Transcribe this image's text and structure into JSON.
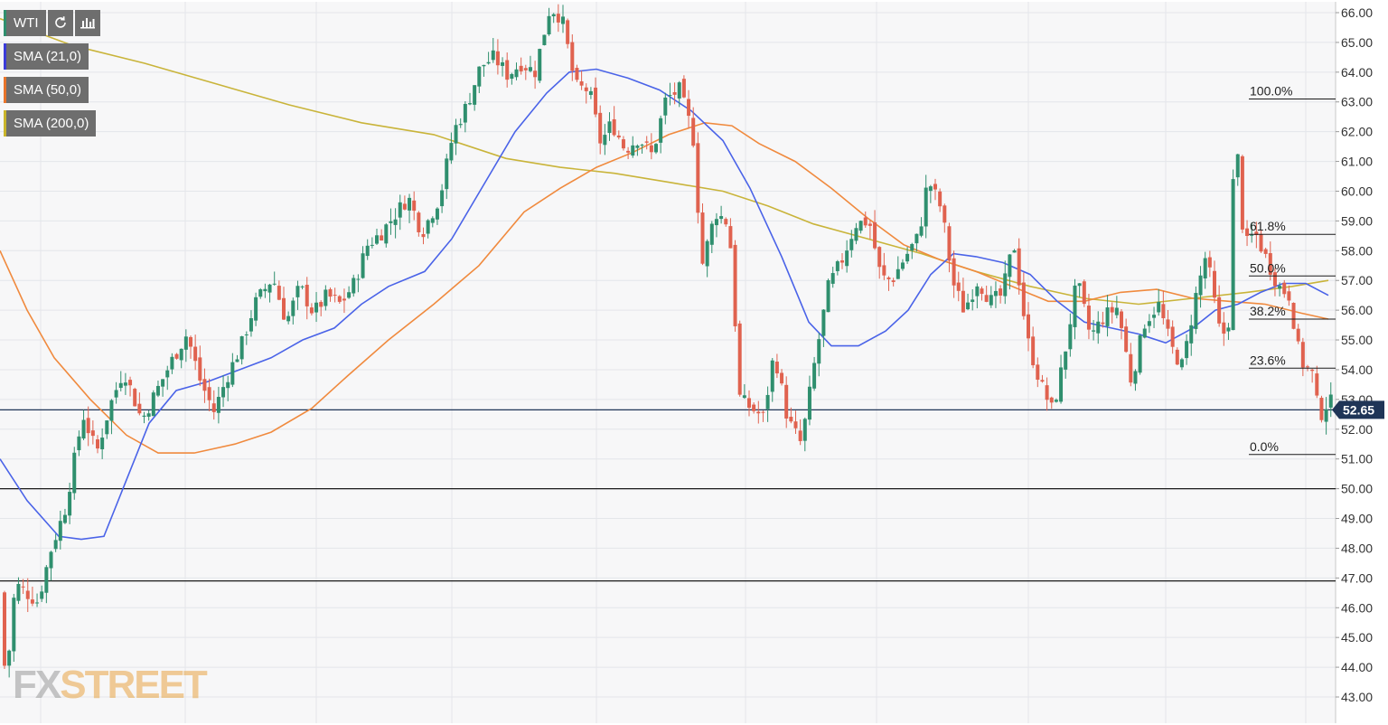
{
  "legend": {
    "symbol": "WTI",
    "indicators": [
      {
        "label": "SMA (21,0)",
        "color": "#3b3bd8"
      },
      {
        "label": "SMA (50,0)",
        "color": "#e8742a"
      },
      {
        "label": "SMA (200,0)",
        "color": "#c9b42a"
      }
    ],
    "refresh_icon": "refresh-icon",
    "chart_type_icon": "bar-chart-icon"
  },
  "watermark": {
    "part1": "FX",
    "part2": "STREET"
  },
  "colors": {
    "up": "#2f8f6e",
    "down": "#e0624f",
    "sma21": "#4a63e8",
    "sma50": "#f08a3e",
    "sma200": "#c9b43a",
    "grid": "#e4e6ea",
    "price_line": "#1f3557",
    "badge_bg": "#1f3557"
  },
  "chart_data": {
    "type": "candlestick",
    "symbol": "WTI",
    "y_axis": {
      "ylim": [
        42.5,
        66.3
      ],
      "ticks": [
        "43.00",
        "44.00",
        "45.00",
        "46.00",
        "47.00",
        "48.00",
        "49.00",
        "50.00",
        "51.00",
        "52.00",
        "53.00",
        "54.00",
        "55.00",
        "56.00",
        "57.00",
        "58.00",
        "59.00",
        "60.00",
        "61.00",
        "62.00",
        "63.00",
        "64.00",
        "65.00",
        "66.00"
      ],
      "position": "right"
    },
    "grid": true,
    "current_price": {
      "value": 52.65,
      "label": "52.65"
    },
    "horizontal_levels": [
      50.0,
      46.9
    ],
    "fibonacci": {
      "high": 63.1,
      "low": 51.15,
      "levels": [
        {
          "label": "100.0%",
          "value": 63.1
        },
        {
          "label": "61.8%",
          "value": 58.55
        },
        {
          "label": "50.0%",
          "value": 57.15
        },
        {
          "label": "38.2%",
          "value": 55.7
        },
        {
          "label": "23.6%",
          "value": 54.05
        },
        {
          "label": "0.0%",
          "value": 51.15
        }
      ]
    },
    "price_path": [
      [
        0,
        46.5
      ],
      [
        10,
        43.5
      ],
      [
        20,
        46.8
      ],
      [
        45,
        46.2
      ],
      [
        60,
        48.0
      ],
      [
        75,
        49.3
      ],
      [
        95,
        52.5
      ],
      [
        110,
        51.2
      ],
      [
        125,
        52.8
      ],
      [
        140,
        54.0
      ],
      [
        160,
        52.3
      ],
      [
        175,
        53.2
      ],
      [
        195,
        54.4
      ],
      [
        210,
        55.2
      ],
      [
        225,
        53.6
      ],
      [
        240,
        52.6
      ],
      [
        255,
        53.8
      ],
      [
        270,
        54.8
      ],
      [
        285,
        56.2
      ],
      [
        305,
        57.1
      ],
      [
        320,
        55.6
      ],
      [
        335,
        56.8
      ],
      [
        350,
        55.9
      ],
      [
        365,
        56.5
      ],
      [
        380,
        56.2
      ],
      [
        395,
        56.9
      ],
      [
        410,
        58.2
      ],
      [
        425,
        58.6
      ],
      [
        440,
        59.2
      ],
      [
        455,
        59.8
      ],
      [
        470,
        58.6
      ],
      [
        490,
        59.8
      ],
      [
        505,
        62.0
      ],
      [
        520,
        62.9
      ],
      [
        535,
        64.2
      ],
      [
        550,
        64.5
      ],
      [
        565,
        63.9
      ],
      [
        580,
        64.3
      ],
      [
        595,
        64.0
      ],
      [
        612,
        66.2
      ],
      [
        625,
        65.8
      ],
      [
        640,
        63.5
      ],
      [
        655,
        63.4
      ],
      [
        668,
        61.6
      ],
      [
        680,
        62.3
      ],
      [
        695,
        61.4
      ],
      [
        710,
        61.8
      ],
      [
        725,
        61.2
      ],
      [
        740,
        63.1
      ],
      [
        755,
        63.4
      ],
      [
        770,
        61.9
      ],
      [
        780,
        57.5
      ],
      [
        795,
        59.3
      ],
      [
        810,
        58.9
      ],
      [
        822,
        53.0
      ],
      [
        835,
        52.7
      ],
      [
        848,
        52.4
      ],
      [
        860,
        54.6
      ],
      [
        875,
        52.3
      ],
      [
        890,
        51.5
      ],
      [
        905,
        54.3
      ],
      [
        920,
        56.8
      ],
      [
        935,
        57.7
      ],
      [
        950,
        58.9
      ],
      [
        965,
        59.0
      ],
      [
        978,
        57.1
      ],
      [
        990,
        57.0
      ],
      [
        1005,
        57.8
      ],
      [
        1020,
        58.5
      ],
      [
        1030,
        60.4
      ],
      [
        1045,
        59.4
      ],
      [
        1058,
        56.9
      ],
      [
        1070,
        56.0
      ],
      [
        1085,
        57.0
      ],
      [
        1100,
        56.3
      ],
      [
        1112,
        56.5
      ],
      [
        1125,
        58.3
      ],
      [
        1140,
        55.0
      ],
      [
        1155,
        53.5
      ],
      [
        1168,
        52.6
      ],
      [
        1180,
        54.3
      ],
      [
        1195,
        57.0
      ],
      [
        1210,
        55.1
      ],
      [
        1225,
        55.8
      ],
      [
        1240,
        56.1
      ],
      [
        1255,
        53.6
      ],
      [
        1270,
        55.6
      ],
      [
        1285,
        56.2
      ],
      [
        1300,
        54.7
      ],
      [
        1312,
        54.1
      ],
      [
        1325,
        56.3
      ],
      [
        1338,
        57.9
      ],
      [
        1352,
        55.4
      ],
      [
        1362,
        55.1
      ],
      [
        1370,
        62.3
      ],
      [
        1380,
        58.1
      ],
      [
        1392,
        58.6
      ],
      [
        1405,
        57.7
      ],
      [
        1418,
        56.8
      ],
      [
        1430,
        56.5
      ],
      [
        1442,
        54.3
      ],
      [
        1455,
        53.9
      ],
      [
        1463,
        52.4
      ],
      [
        1472,
        52.9
      ]
    ],
    "sma21_path": [
      [
        0,
        51.0
      ],
      [
        30,
        49.6
      ],
      [
        65,
        48.4
      ],
      [
        90,
        48.3
      ],
      [
        115,
        48.4
      ],
      [
        140,
        50.3
      ],
      [
        165,
        52.2
      ],
      [
        195,
        53.3
      ],
      [
        230,
        53.6
      ],
      [
        265,
        54.0
      ],
      [
        300,
        54.4
      ],
      [
        335,
        55.0
      ],
      [
        370,
        55.4
      ],
      [
        400,
        56.2
      ],
      [
        430,
        56.8
      ],
      [
        470,
        57.3
      ],
      [
        500,
        58.4
      ],
      [
        535,
        60.2
      ],
      [
        570,
        62.0
      ],
      [
        605,
        63.3
      ],
      [
        630,
        64.0
      ],
      [
        660,
        64.1
      ],
      [
        695,
        63.8
      ],
      [
        730,
        63.4
      ],
      [
        765,
        62.7
      ],
      [
        800,
        61.7
      ],
      [
        830,
        60.1
      ],
      [
        865,
        57.8
      ],
      [
        895,
        55.6
      ],
      [
        920,
        54.8
      ],
      [
        950,
        54.8
      ],
      [
        980,
        55.3
      ],
      [
        1005,
        56.0
      ],
      [
        1030,
        57.2
      ],
      [
        1055,
        57.9
      ],
      [
        1080,
        57.8
      ],
      [
        1110,
        57.6
      ],
      [
        1140,
        57.2
      ],
      [
        1170,
        56.3
      ],
      [
        1200,
        55.6
      ],
      [
        1230,
        55.4
      ],
      [
        1260,
        55.2
      ],
      [
        1290,
        54.9
      ],
      [
        1320,
        55.4
      ],
      [
        1345,
        56.0
      ],
      [
        1370,
        56.2
      ],
      [
        1395,
        56.6
      ],
      [
        1420,
        56.9
      ],
      [
        1445,
        56.9
      ],
      [
        1470,
        56.5
      ]
    ],
    "sma50_path": [
      [
        0,
        58.0
      ],
      [
        30,
        56.0
      ],
      [
        60,
        54.4
      ],
      [
        100,
        53.0
      ],
      [
        140,
        51.8
      ],
      [
        175,
        51.2
      ],
      [
        215,
        51.2
      ],
      [
        260,
        51.5
      ],
      [
        300,
        51.9
      ],
      [
        345,
        52.7
      ],
      [
        385,
        53.8
      ],
      [
        430,
        55.0
      ],
      [
        480,
        56.2
      ],
      [
        530,
        57.5
      ],
      [
        580,
        59.3
      ],
      [
        620,
        60.1
      ],
      [
        660,
        60.8
      ],
      [
        700,
        61.3
      ],
      [
        740,
        61.9
      ],
      [
        780,
        62.3
      ],
      [
        810,
        62.2
      ],
      [
        840,
        61.6
      ],
      [
        880,
        61.0
      ],
      [
        920,
        60.1
      ],
      [
        960,
        59.1
      ],
      [
        1000,
        58.2
      ],
      [
        1040,
        57.7
      ],
      [
        1080,
        57.3
      ],
      [
        1120,
        56.8
      ],
      [
        1160,
        56.3
      ],
      [
        1200,
        56.3
      ],
      [
        1240,
        56.6
      ],
      [
        1280,
        56.7
      ],
      [
        1320,
        56.4
      ],
      [
        1360,
        56.3
      ],
      [
        1400,
        56.2
      ],
      [
        1440,
        55.9
      ],
      [
        1470,
        55.7
      ]
    ],
    "sma200_path": [
      [
        0,
        65.8
      ],
      [
        80,
        64.9
      ],
      [
        160,
        64.3
      ],
      [
        240,
        63.6
      ],
      [
        320,
        62.9
      ],
      [
        400,
        62.3
      ],
      [
        480,
        61.9
      ],
      [
        560,
        61.1
      ],
      [
        620,
        60.8
      ],
      [
        680,
        60.6
      ],
      [
        740,
        60.3
      ],
      [
        800,
        60.0
      ],
      [
        850,
        59.5
      ],
      [
        900,
        58.9
      ],
      [
        960,
        58.4
      ],
      [
        1020,
        57.9
      ],
      [
        1080,
        57.3
      ],
      [
        1140,
        56.8
      ],
      [
        1200,
        56.4
      ],
      [
        1260,
        56.2
      ],
      [
        1320,
        56.4
      ],
      [
        1380,
        56.6
      ],
      [
        1430,
        56.8
      ],
      [
        1470,
        57.0
      ]
    ]
  }
}
